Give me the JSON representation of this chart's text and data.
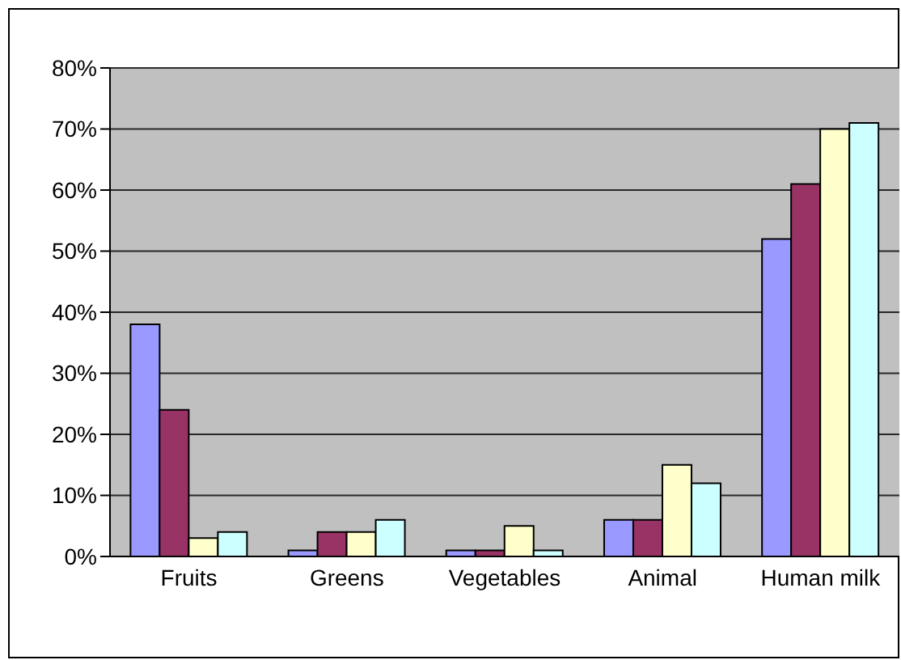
{
  "chart_data": {
    "type": "bar",
    "categories": [
      "Fruits",
      "Greens",
      "Vegetables",
      "Animal",
      "Human milk"
    ],
    "series": [
      {
        "color": "#9999ff",
        "values": [
          38,
          1,
          1,
          6,
          52
        ]
      },
      {
        "color": "#993366",
        "values": [
          24,
          4,
          1,
          6,
          61
        ]
      },
      {
        "color": "#ffffcc",
        "values": [
          3,
          4,
          5,
          15,
          70
        ]
      },
      {
        "color": "#ccffff",
        "values": [
          4,
          6,
          1,
          12,
          71
        ]
      }
    ],
    "ylim": [
      0,
      80
    ],
    "yticks": [
      {
        "value": 0,
        "label": "0%"
      },
      {
        "value": 10,
        "label": "10%"
      },
      {
        "value": 20,
        "label": "20%"
      },
      {
        "value": 30,
        "label": "30%"
      },
      {
        "value": 40,
        "label": "40%"
      },
      {
        "value": 50,
        "label": "50%"
      },
      {
        "value": 60,
        "label": "60%"
      },
      {
        "value": 70,
        "label": "70%"
      },
      {
        "value": 80,
        "label": "80%"
      }
    ],
    "grid": "y",
    "legend": false
  }
}
